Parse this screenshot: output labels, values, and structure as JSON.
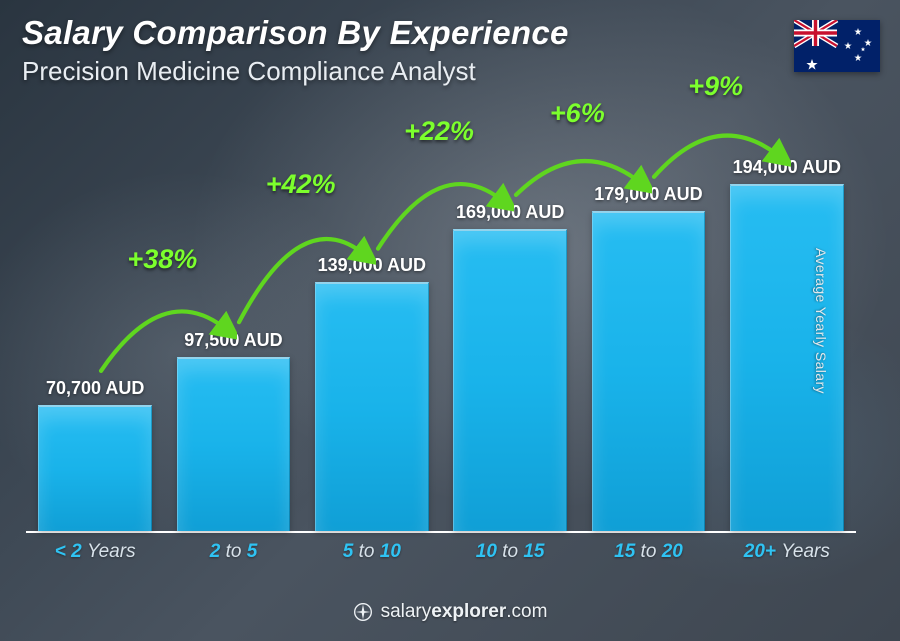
{
  "header": {
    "title": "Salary Comparison By Experience",
    "subtitle": "Precision Medicine Compliance Analyst"
  },
  "country_flag": "Australia",
  "y_axis_label": "Average Yearly Salary",
  "footer": {
    "brand_label": "salary",
    "brand_label_bold": "explorer",
    "brand_suffix": ".com"
  },
  "chart": {
    "type": "bar",
    "currency": "AUD",
    "max_value": 194000,
    "max_bar_ratio": 0.82,
    "bar_color": "#19b3ea",
    "bar_highlight": "#27bdf2",
    "background_gradient": [
      "#2a3540",
      "#4a5460"
    ],
    "axis_color": "#ffffff",
    "value_font_size": 18,
    "value_color": "#ffffff",
    "xlabel_color": "#2fc3f3",
    "xlabel_secondary_color": "#d8e2ea",
    "xlabel_font_size": 19,
    "pct_color": "#7cff2d",
    "pct_font_size": 27,
    "arrow_color": "#5fd61f",
    "data": [
      {
        "category_a": "< 2",
        "category_b": "Years",
        "value": 70700,
        "value_label": "70,700 AUD"
      },
      {
        "category_a": "2",
        "category_mid": "to",
        "category_c": "5",
        "value": 97500,
        "value_label": "97,500 AUD",
        "pct": "+38%"
      },
      {
        "category_a": "5",
        "category_mid": "to",
        "category_c": "10",
        "value": 139000,
        "value_label": "139,000 AUD",
        "pct": "+42%"
      },
      {
        "category_a": "10",
        "category_mid": "to",
        "category_c": "15",
        "value": 169000,
        "value_label": "169,000 AUD",
        "pct": "+22%"
      },
      {
        "category_a": "15",
        "category_mid": "to",
        "category_c": "20",
        "value": 179000,
        "value_label": "179,000 AUD",
        "pct": "+6%"
      },
      {
        "category_a": "20+",
        "category_b": "Years",
        "value": 194000,
        "value_label": "194,000 AUD",
        "pct": "+9%"
      }
    ]
  }
}
